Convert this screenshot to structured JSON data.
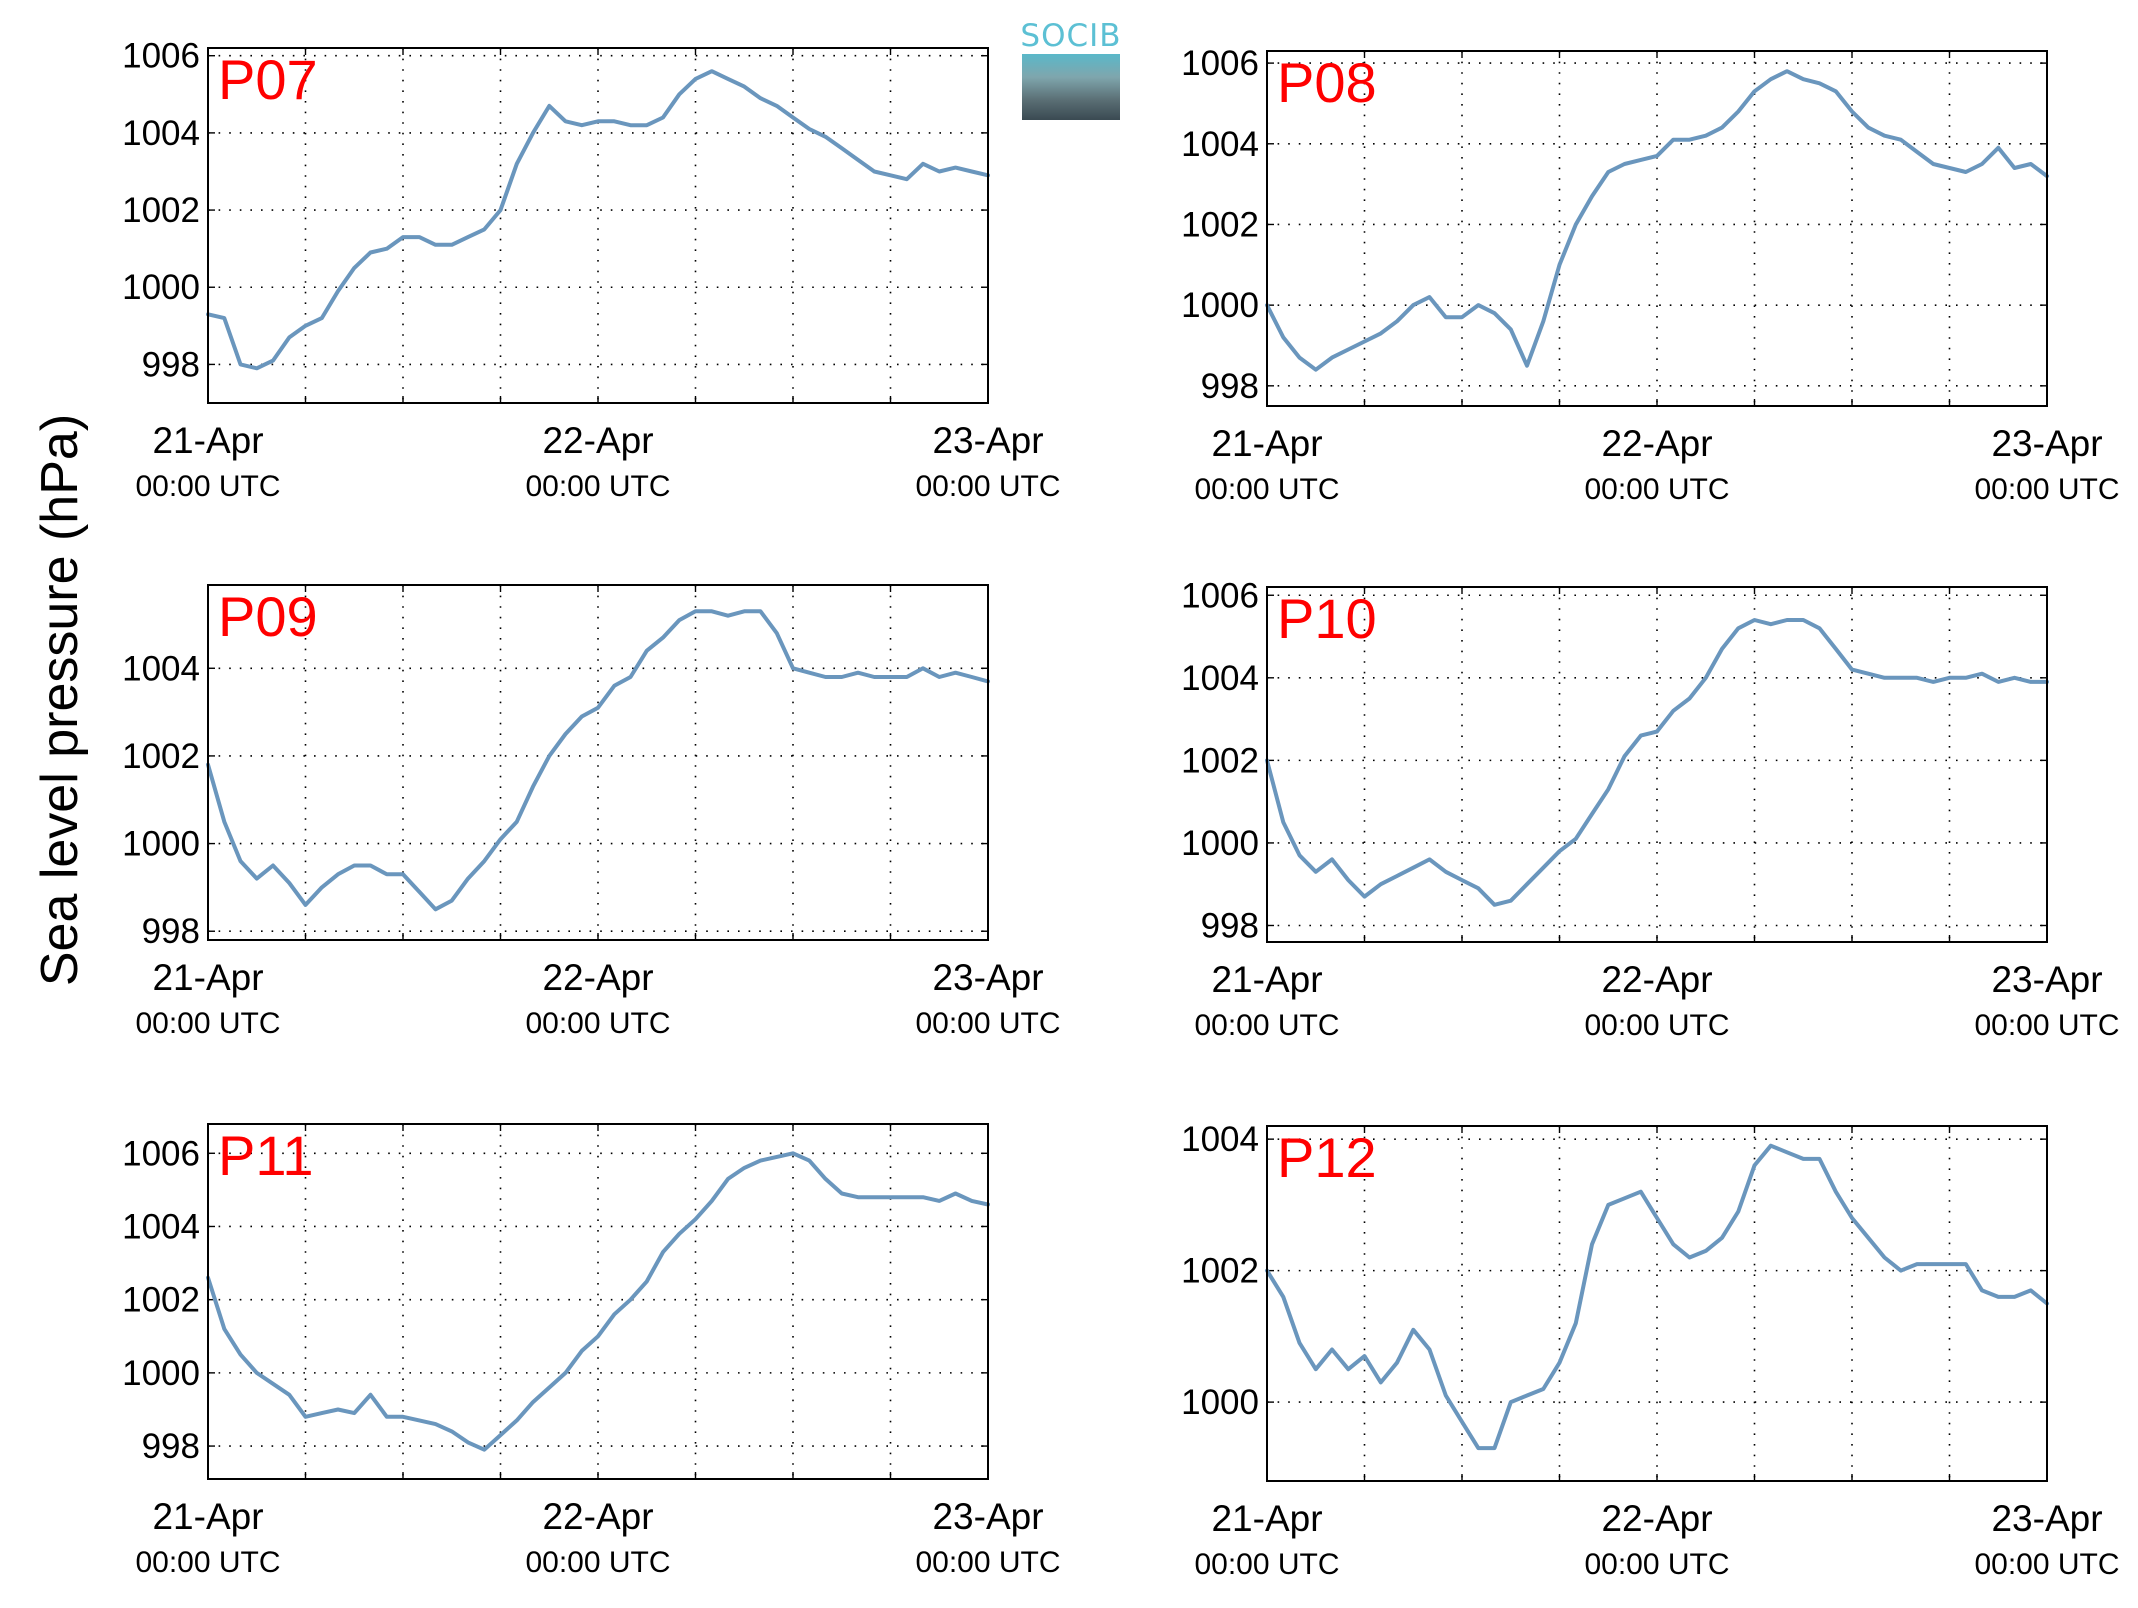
{
  "figure": {
    "ylabel": "Sea level pressure (hPa)",
    "logo_text": "SOCIB",
    "line_color": "#6a96bd",
    "station_label_color": "#ff0000",
    "x_tick_labels": [
      {
        "date": "21-Apr",
        "time": "00:00 UTC"
      },
      {
        "date": "22-Apr",
        "time": "00:00 UTC"
      },
      {
        "date": "23-Apr",
        "time": "00:00 UTC"
      }
    ]
  },
  "chart_data": [
    {
      "type": "line",
      "title": "P07",
      "xlabel": "",
      "ylabel": "Sea level pressure (hPa)",
      "x_unit": "hours since 21-Apr 00:00 UTC",
      "xlim": [
        0,
        48
      ],
      "ylim": [
        997,
        1006.2
      ],
      "yticks": [
        998,
        1000,
        1002,
        1004,
        1006
      ],
      "grid": true,
      "x": [
        0,
        1,
        2,
        3,
        4,
        5,
        6,
        7,
        8,
        9,
        10,
        11,
        12,
        13,
        14,
        15,
        16,
        17,
        18,
        19,
        20,
        21,
        22,
        23,
        24,
        25,
        26,
        27,
        28,
        29,
        30,
        31,
        32,
        33,
        34,
        35,
        36,
        37,
        38,
        39,
        40,
        41,
        42,
        43,
        44,
        45,
        46,
        47,
        48
      ],
      "values": [
        999.3,
        999.2,
        998.0,
        997.9,
        998.1,
        998.7,
        999.0,
        999.2,
        999.9,
        1000.5,
        1000.9,
        1001.0,
        1001.3,
        1001.3,
        1001.1,
        1001.1,
        1001.3,
        1001.5,
        1002.0,
        1003.2,
        1004.0,
        1004.7,
        1004.3,
        1004.2,
        1004.3,
        1004.3,
        1004.2,
        1004.2,
        1004.4,
        1005.0,
        1005.4,
        1005.6,
        1005.4,
        1005.2,
        1004.9,
        1004.7,
        1004.4,
        1004.1,
        1003.9,
        1003.6,
        1003.3,
        1003.0,
        1002.9,
        1002.8,
        1003.2,
        1003.0,
        1003.1,
        1003.0,
        1002.9
      ]
    },
    {
      "type": "line",
      "title": "P08",
      "xlabel": "",
      "ylabel": "Sea level pressure (hPa)",
      "x_unit": "hours since 21-Apr 00:00 UTC",
      "xlim": [
        0,
        48
      ],
      "ylim": [
        997.5,
        1006.3
      ],
      "yticks": [
        998,
        1000,
        1002,
        1004,
        1006
      ],
      "grid": true,
      "x": [
        0,
        1,
        2,
        3,
        4,
        5,
        6,
        7,
        8,
        9,
        10,
        11,
        12,
        13,
        14,
        15,
        16,
        17,
        18,
        19,
        20,
        21,
        22,
        23,
        24,
        25,
        26,
        27,
        28,
        29,
        30,
        31,
        32,
        33,
        34,
        35,
        36,
        37,
        38,
        39,
        40,
        41,
        42,
        43,
        44,
        45,
        46,
        47,
        48
      ],
      "values": [
        1000.0,
        999.2,
        998.7,
        998.4,
        998.7,
        998.9,
        999.1,
        999.3,
        999.6,
        1000.0,
        1000.2,
        999.7,
        999.7,
        1000.0,
        999.8,
        999.4,
        998.5,
        999.6,
        1001.0,
        1002.0,
        1002.7,
        1003.3,
        1003.5,
        1003.6,
        1003.7,
        1004.1,
        1004.1,
        1004.2,
        1004.4,
        1004.8,
        1005.3,
        1005.6,
        1005.8,
        1005.6,
        1005.5,
        1005.3,
        1004.8,
        1004.4,
        1004.2,
        1004.1,
        1003.8,
        1003.5,
        1003.4,
        1003.3,
        1003.5,
        1003.9,
        1003.4,
        1003.5,
        1003.2
      ]
    },
    {
      "type": "line",
      "title": "P09",
      "xlabel": "",
      "ylabel": "Sea level pressure (hPa)",
      "x_unit": "hours since 21-Apr 00:00 UTC",
      "xlim": [
        0,
        48
      ],
      "ylim": [
        997.8,
        1005.9
      ],
      "yticks": [
        998,
        1000,
        1002,
        1004
      ],
      "grid": true,
      "x": [
        0,
        1,
        2,
        3,
        4,
        5,
        6,
        7,
        8,
        9,
        10,
        11,
        12,
        13,
        14,
        15,
        16,
        17,
        18,
        19,
        20,
        21,
        22,
        23,
        24,
        25,
        26,
        27,
        28,
        29,
        30,
        31,
        32,
        33,
        34,
        35,
        36,
        37,
        38,
        39,
        40,
        41,
        42,
        43,
        44,
        45,
        46,
        47,
        48
      ],
      "values": [
        1001.8,
        1000.5,
        999.6,
        999.2,
        999.5,
        999.1,
        998.6,
        999.0,
        999.3,
        999.5,
        999.5,
        999.3,
        999.3,
        998.9,
        998.5,
        998.7,
        999.2,
        999.6,
        1000.1,
        1000.5,
        1001.3,
        1002.0,
        1002.5,
        1002.9,
        1003.1,
        1003.6,
        1003.8,
        1004.4,
        1004.7,
        1005.1,
        1005.3,
        1005.3,
        1005.2,
        1005.3,
        1005.3,
        1004.8,
        1004.0,
        1003.9,
        1003.8,
        1003.8,
        1003.9,
        1003.8,
        1003.8,
        1003.8,
        1004.0,
        1003.8,
        1003.9,
        1003.8,
        1003.7
      ]
    },
    {
      "type": "line",
      "title": "P10",
      "xlabel": "",
      "ylabel": "Sea level pressure (hPa)",
      "x_unit": "hours since 21-Apr 00:00 UTC",
      "xlim": [
        0,
        48
      ],
      "ylim": [
        997.6,
        1006.2
      ],
      "yticks": [
        998,
        1000,
        1002,
        1004,
        1006
      ],
      "grid": true,
      "x": [
        0,
        1,
        2,
        3,
        4,
        5,
        6,
        7,
        8,
        9,
        10,
        11,
        12,
        13,
        14,
        15,
        16,
        17,
        18,
        19,
        20,
        21,
        22,
        23,
        24,
        25,
        26,
        27,
        28,
        29,
        30,
        31,
        32,
        33,
        34,
        35,
        36,
        37,
        38,
        39,
        40,
        41,
        42,
        43,
        44,
        45,
        46,
        47,
        48
      ],
      "values": [
        1002.0,
        1000.5,
        999.7,
        999.3,
        999.6,
        999.1,
        998.7,
        999.0,
        999.2,
        999.4,
        999.6,
        999.3,
        999.1,
        998.9,
        998.5,
        998.6,
        999.0,
        999.4,
        999.8,
        1000.1,
        1000.7,
        1001.3,
        1002.1,
        1002.6,
        1002.7,
        1003.2,
        1003.5,
        1004.0,
        1004.7,
        1005.2,
        1005.4,
        1005.3,
        1005.4,
        1005.4,
        1005.2,
        1004.7,
        1004.2,
        1004.1,
        1004.0,
        1004.0,
        1004.0,
        1003.9,
        1004.0,
        1004.0,
        1004.1,
        1003.9,
        1004.0,
        1003.9,
        1003.9
      ]
    },
    {
      "type": "line",
      "title": "P11",
      "xlabel": "",
      "ylabel": "Sea level pressure (hPa)",
      "x_unit": "hours since 21-Apr 00:00 UTC",
      "xlim": [
        0,
        48
      ],
      "ylim": [
        997.1,
        1006.8
      ],
      "yticks": [
        998,
        1000,
        1002,
        1004,
        1006
      ],
      "grid": true,
      "x": [
        0,
        1,
        2,
        3,
        4,
        5,
        6,
        7,
        8,
        9,
        10,
        11,
        12,
        13,
        14,
        15,
        16,
        17,
        18,
        19,
        20,
        21,
        22,
        23,
        24,
        25,
        26,
        27,
        28,
        29,
        30,
        31,
        32,
        33,
        34,
        35,
        36,
        37,
        38,
        39,
        40,
        41,
        42,
        43,
        44,
        45,
        46,
        47,
        48
      ],
      "values": [
        1002.6,
        1001.2,
        1000.5,
        1000.0,
        999.7,
        999.4,
        998.8,
        998.9,
        999.0,
        998.9,
        999.4,
        998.8,
        998.8,
        998.7,
        998.6,
        998.4,
        998.1,
        997.9,
        998.3,
        998.7,
        999.2,
        999.6,
        1000.0,
        1000.6,
        1001.0,
        1001.6,
        1002.0,
        1002.5,
        1003.3,
        1003.8,
        1004.2,
        1004.7,
        1005.3,
        1005.6,
        1005.8,
        1005.9,
        1006.0,
        1005.8,
        1005.3,
        1004.9,
        1004.8,
        1004.8,
        1004.8,
        1004.8,
        1004.8,
        1004.7,
        1004.9,
        1004.7,
        1004.6
      ]
    },
    {
      "type": "line",
      "title": "P12",
      "xlabel": "",
      "ylabel": "Sea level pressure (hPa)",
      "x_unit": "hours since 21-Apr 00:00 UTC",
      "xlim": [
        0,
        48
      ],
      "ylim": [
        998.8,
        1004.2
      ],
      "yticks": [
        1000,
        1002,
        1004
      ],
      "grid": true,
      "x": [
        0,
        1,
        2,
        3,
        4,
        5,
        6,
        7,
        8,
        9,
        10,
        11,
        12,
        13,
        14,
        15,
        16,
        17,
        18,
        19,
        20,
        21,
        22,
        23,
        24,
        25,
        26,
        27,
        28,
        29,
        30,
        31,
        32,
        33,
        34,
        35,
        36,
        37,
        38,
        39,
        40,
        41,
        42,
        43,
        44,
        45,
        46,
        47,
        48
      ],
      "values": [
        1002.0,
        1001.6,
        1000.9,
        1000.5,
        1000.8,
        1000.5,
        1000.7,
        1000.3,
        1000.6,
        1001.1,
        1000.8,
        1000.1,
        999.7,
        999.3,
        999.3,
        1000.0,
        1000.1,
        1000.2,
        1000.6,
        1001.2,
        1002.4,
        1003.0,
        1003.1,
        1003.2,
        1002.8,
        1002.4,
        1002.2,
        1002.3,
        1002.5,
        1002.9,
        1003.6,
        1003.9,
        1003.8,
        1003.7,
        1003.7,
        1003.2,
        1002.8,
        1002.5,
        1002.2,
        1002.0,
        1002.1,
        1002.1,
        1002.1,
        1002.1,
        1001.7,
        1001.6,
        1001.6,
        1001.7,
        1001.5
      ]
    }
  ]
}
